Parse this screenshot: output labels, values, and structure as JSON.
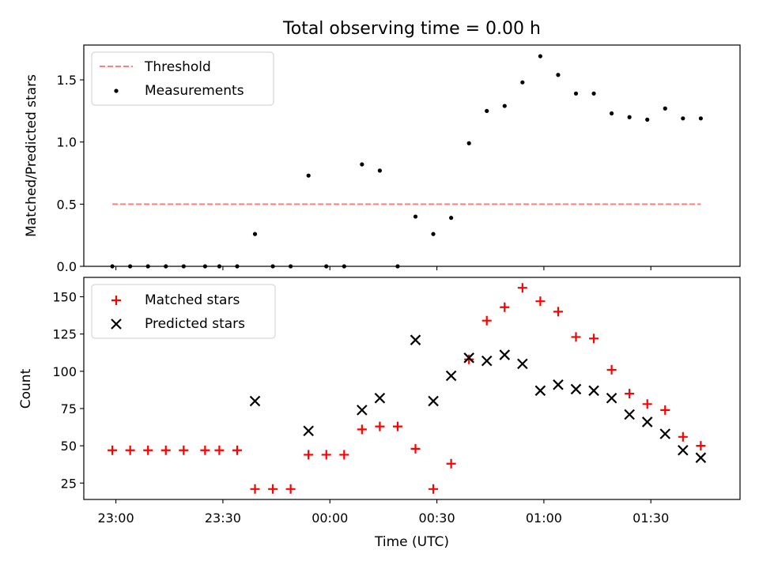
{
  "chart_data": [
    {
      "type": "scatter",
      "title": "Total observing time = 0.00 h",
      "ylabel": "Matched/Predicted stars",
      "ylim": [
        0,
        1.78
      ],
      "yticks": [
        "0.0",
        "0.5",
        "1.0",
        "1.5"
      ],
      "ytick_values": [
        0,
        0.5,
        1.0,
        1.5
      ],
      "legend": "top-left",
      "threshold": {
        "name": "Threshold",
        "value": 0.5,
        "x_start": "22:59",
        "x_end": "01:44",
        "color": "#ff7f7f"
      },
      "series": [
        {
          "name": "Measurements",
          "color": "#000000",
          "x": [
            "22:59",
            "23:04",
            "23:09",
            "23:14",
            "23:19",
            "23:25",
            "23:29",
            "23:34",
            "23:39",
            "23:44",
            "23:49",
            "23:54",
            "23:59",
            "00:04",
            "00:09",
            "00:14",
            "00:19",
            "00:24",
            "00:29",
            "00:34",
            "00:39",
            "00:44",
            "00:49",
            "00:54",
            "00:59",
            "01:04",
            "01:09",
            "01:14",
            "01:19",
            "01:24",
            "01:29",
            "01:34",
            "01:39",
            "01:44"
          ],
          "y": [
            0,
            0,
            0,
            0,
            0,
            0,
            0,
            0,
            0.26,
            0,
            0,
            0.73,
            0,
            0,
            0.82,
            0.77,
            0,
            0.4,
            0.26,
            0.39,
            0.99,
            1.25,
            1.29,
            1.48,
            1.69,
            1.54,
            1.39,
            1.39,
            1.23,
            1.2,
            1.18,
            1.27,
            1.19,
            1.19
          ]
        }
      ]
    },
    {
      "type": "scatter",
      "xlabel": "Time (UTC)",
      "ylabel": "Count",
      "ylim": [
        14,
        163
      ],
      "yticks": [
        "25",
        "50",
        "75",
        "100",
        "125",
        "150"
      ],
      "ytick_values": [
        25,
        50,
        75,
        100,
        125,
        150
      ],
      "xlim": [
        "22:51",
        "01:55"
      ],
      "xticks": [
        "23:00",
        "23:30",
        "00:00",
        "00:30",
        "01:00",
        "01:30"
      ],
      "legend": "top-left",
      "series": [
        {
          "name": "Matched stars",
          "marker": "plus",
          "color": "#ff0000",
          "x": [
            "22:59",
            "23:04",
            "23:09",
            "23:14",
            "23:19",
            "23:25",
            "23:29",
            "23:34",
            "23:39",
            "23:44",
            "23:49",
            "23:54",
            "23:59",
            "00:04",
            "00:09",
            "00:14",
            "00:19",
            "00:24",
            "00:29",
            "00:34",
            "00:39",
            "00:44",
            "00:49",
            "00:54",
            "00:59",
            "01:04",
            "01:09",
            "01:14",
            "01:19",
            "01:24",
            "01:29",
            "01:34",
            "01:39",
            "01:44"
          ],
          "y": [
            47,
            47,
            47,
            47,
            47,
            47,
            47,
            47,
            21,
            21,
            21,
            44,
            44,
            44,
            61,
            63,
            63,
            48,
            21,
            38,
            108,
            134,
            143,
            156,
            147,
            140,
            123,
            122,
            101,
            85,
            78,
            74,
            56,
            50
          ]
        },
        {
          "name": "Predicted stars",
          "marker": "x",
          "color": "#000000",
          "x": [
            "23:39",
            "23:54",
            "00:09",
            "00:14",
            "00:24",
            "00:29",
            "00:34",
            "00:39",
            "00:44",
            "00:49",
            "00:54",
            "00:59",
            "01:04",
            "01:09",
            "01:14",
            "01:19",
            "01:24",
            "01:29",
            "01:34",
            "01:39",
            "01:44"
          ],
          "y": [
            80,
            60,
            74,
            82,
            121,
            80,
            97,
            109,
            107,
            111,
            105,
            87,
            91,
            88,
            87,
            82,
            71,
            66,
            58,
            47,
            42
          ]
        }
      ]
    }
  ]
}
